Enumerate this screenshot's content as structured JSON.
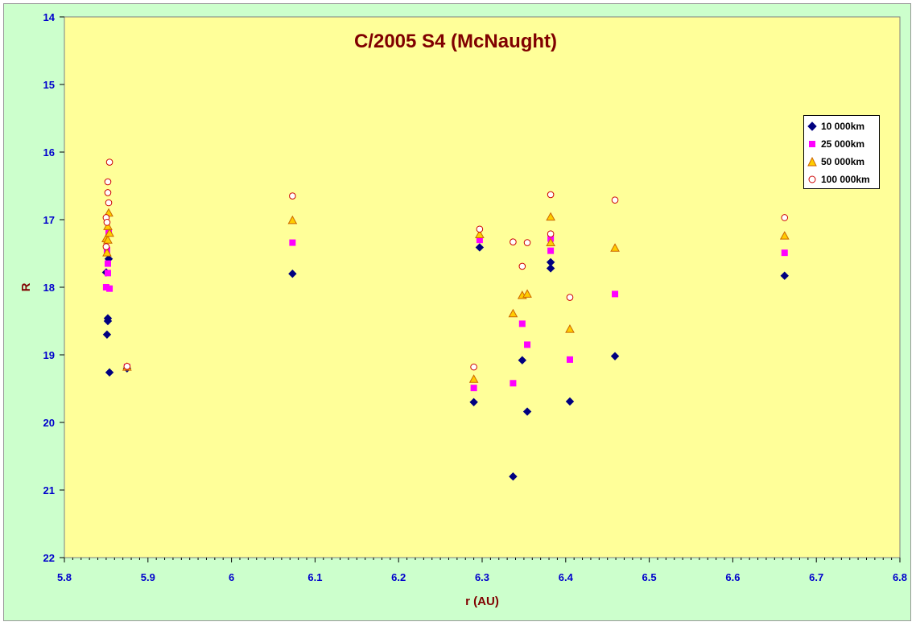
{
  "chart_data": {
    "type": "scatter",
    "title": "C/2005 S4 (McNaught)",
    "xlabel": "r (AU)",
    "ylabel": "R",
    "xlim": [
      5.8,
      6.8
    ],
    "ylim": [
      14,
      22
    ],
    "y_inverted": true,
    "x_ticks": [
      "5.8",
      "5.9",
      "6",
      "6.1",
      "6.2",
      "6.3",
      "6.4",
      "6.5",
      "6.6",
      "6.7",
      "6.8"
    ],
    "y_ticks": [
      "14",
      "15",
      "16",
      "17",
      "18",
      "19",
      "20",
      "21",
      "22"
    ],
    "grid": false,
    "legend_position": "right",
    "plot_background": "#ffff99",
    "chart_background": "#ccffcc",
    "series": [
      {
        "name": "10 000km",
        "marker": "diamond",
        "color": "#000080",
        "points": [
          [
            5.85,
            17.78
          ],
          [
            5.851,
            18.7
          ],
          [
            5.852,
            18.46
          ],
          [
            5.852,
            18.5
          ],
          [
            5.853,
            17.58
          ],
          [
            5.854,
            19.26
          ],
          [
            5.875,
            19.2
          ],
          [
            6.073,
            17.8
          ],
          [
            6.29,
            19.7
          ],
          [
            6.297,
            17.41
          ],
          [
            6.337,
            20.8
          ],
          [
            6.348,
            19.08
          ],
          [
            6.354,
            19.84
          ],
          [
            6.382,
            17.63
          ],
          [
            6.382,
            17.72
          ],
          [
            6.405,
            19.69
          ],
          [
            6.459,
            19.02
          ],
          [
            6.662,
            17.83
          ]
        ]
      },
      {
        "name": "25 000km",
        "marker": "square",
        "color": "#ff00ff",
        "points": [
          [
            5.85,
            18.0
          ],
          [
            5.851,
            17.45
          ],
          [
            5.852,
            17.65
          ],
          [
            5.852,
            17.79
          ],
          [
            5.853,
            17.19
          ],
          [
            5.854,
            18.02
          ],
          [
            5.875,
            19.18
          ],
          [
            6.073,
            17.34
          ],
          [
            6.29,
            19.49
          ],
          [
            6.297,
            17.3
          ],
          [
            6.337,
            19.42
          ],
          [
            6.348,
            18.54
          ],
          [
            6.354,
            18.85
          ],
          [
            6.382,
            17.28
          ],
          [
            6.382,
            17.46
          ],
          [
            6.405,
            19.07
          ],
          [
            6.459,
            18.1
          ],
          [
            6.662,
            17.49
          ]
        ]
      },
      {
        "name": "50 000km",
        "marker": "triangle",
        "color": "#ffcc00",
        "points": [
          [
            5.85,
            17.28
          ],
          [
            5.851,
            17.49
          ],
          [
            5.852,
            17.3
          ],
          [
            5.852,
            17.1
          ],
          [
            5.853,
            16.9
          ],
          [
            5.854,
            17.2
          ],
          [
            5.875,
            19.18
          ],
          [
            6.073,
            17.01
          ],
          [
            6.29,
            19.36
          ],
          [
            6.297,
            17.22
          ],
          [
            6.337,
            18.39
          ],
          [
            6.348,
            18.12
          ],
          [
            6.354,
            18.1
          ],
          [
            6.382,
            16.96
          ],
          [
            6.382,
            17.34
          ],
          [
            6.405,
            18.62
          ],
          [
            6.459,
            17.42
          ],
          [
            6.662,
            17.24
          ]
        ]
      },
      {
        "name": "100 000km",
        "marker": "circle",
        "color": "#ffffff",
        "edge_color": "#cc0000",
        "points": [
          [
            5.85,
            16.97
          ],
          [
            5.851,
            17.04
          ],
          [
            5.852,
            16.44
          ],
          [
            5.852,
            16.6
          ],
          [
            5.853,
            16.75
          ],
          [
            5.854,
            16.15
          ],
          [
            5.85,
            17.4
          ],
          [
            5.875,
            19.17
          ],
          [
            6.073,
            16.65
          ],
          [
            6.29,
            19.18
          ],
          [
            6.297,
            17.14
          ],
          [
            6.337,
            17.33
          ],
          [
            6.348,
            17.69
          ],
          [
            6.354,
            17.34
          ],
          [
            6.382,
            16.63
          ],
          [
            6.382,
            17.21
          ],
          [
            6.405,
            18.15
          ],
          [
            6.459,
            16.71
          ],
          [
            6.662,
            16.97
          ]
        ]
      }
    ]
  }
}
